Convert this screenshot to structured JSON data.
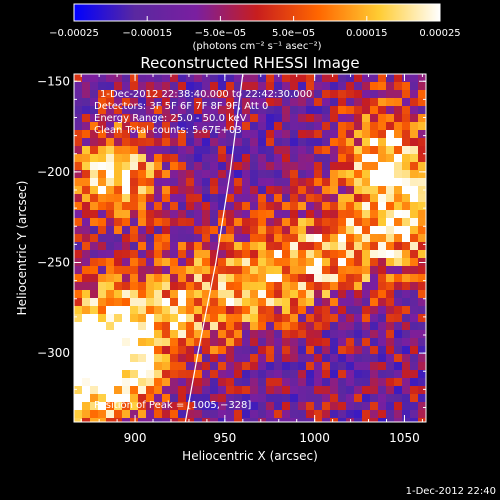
{
  "chart_data": {
    "type": "heatmap",
    "title": "Reconstructed RHESSI Image",
    "xlabel": "Heliocentric X (arcsec)",
    "ylabel": "Heliocentric Y (arcsec)",
    "xlim": [
      866,
      1062
    ],
    "ylim": [
      -338,
      -146
    ],
    "x_ticks": [
      {
        "value": 900,
        "label": "900"
      },
      {
        "value": 950,
        "label": "950"
      },
      {
        "value": 1000,
        "label": "1000"
      },
      {
        "value": 1050,
        "label": "1050"
      }
    ],
    "y_ticks": [
      {
        "value": -300,
        "label": "−300"
      },
      {
        "value": -250,
        "label": "−250"
      },
      {
        "value": -200,
        "label": "−200"
      },
      {
        "value": -150,
        "label": "−150"
      }
    ],
    "colorbar": {
      "range": [
        -0.00025,
        0.00025
      ],
      "ticks": [
        {
          "value": -0.00025,
          "label": "−0.00025"
        },
        {
          "value": -0.00015,
          "label": "−0.00015"
        },
        {
          "value": -5e-05,
          "label": "−5.0e−05"
        },
        {
          "value": 5e-05,
          "label": "5.0e−05"
        },
        {
          "value": 0.00015,
          "label": "0.00015"
        },
        {
          "value": 0.00025,
          "label": "0.00025"
        }
      ],
      "units_label": "(photons cm⁻² s⁻¹ asec⁻²)",
      "colors": [
        "#0000ff",
        "#5a28a0",
        "#7a1fa0",
        "#c81e1e",
        "#ff6600",
        "#ffcc33",
        "#ffffff"
      ]
    },
    "limb": [
      [
        960,
        -146
      ],
      [
        953,
        -200
      ],
      [
        945,
        -250
      ],
      [
        935,
        -300
      ],
      [
        928,
        -338
      ]
    ],
    "peak": [
      1005,
      -328
    ],
    "info_lines": [
      "1-Dec-2012 22:38:40.000 to 22:42:30.000",
      "Detectors: 3F 5F 6F 7F 8F 9F, Att 0",
      "Energy Range: 25.0 - 50.0 keV",
      "Clean    Total counts: 5.67E+03"
    ],
    "peak_label": "Position of Peak = [1005,−328]",
    "footer": "1-Dec-2012 22:40"
  }
}
